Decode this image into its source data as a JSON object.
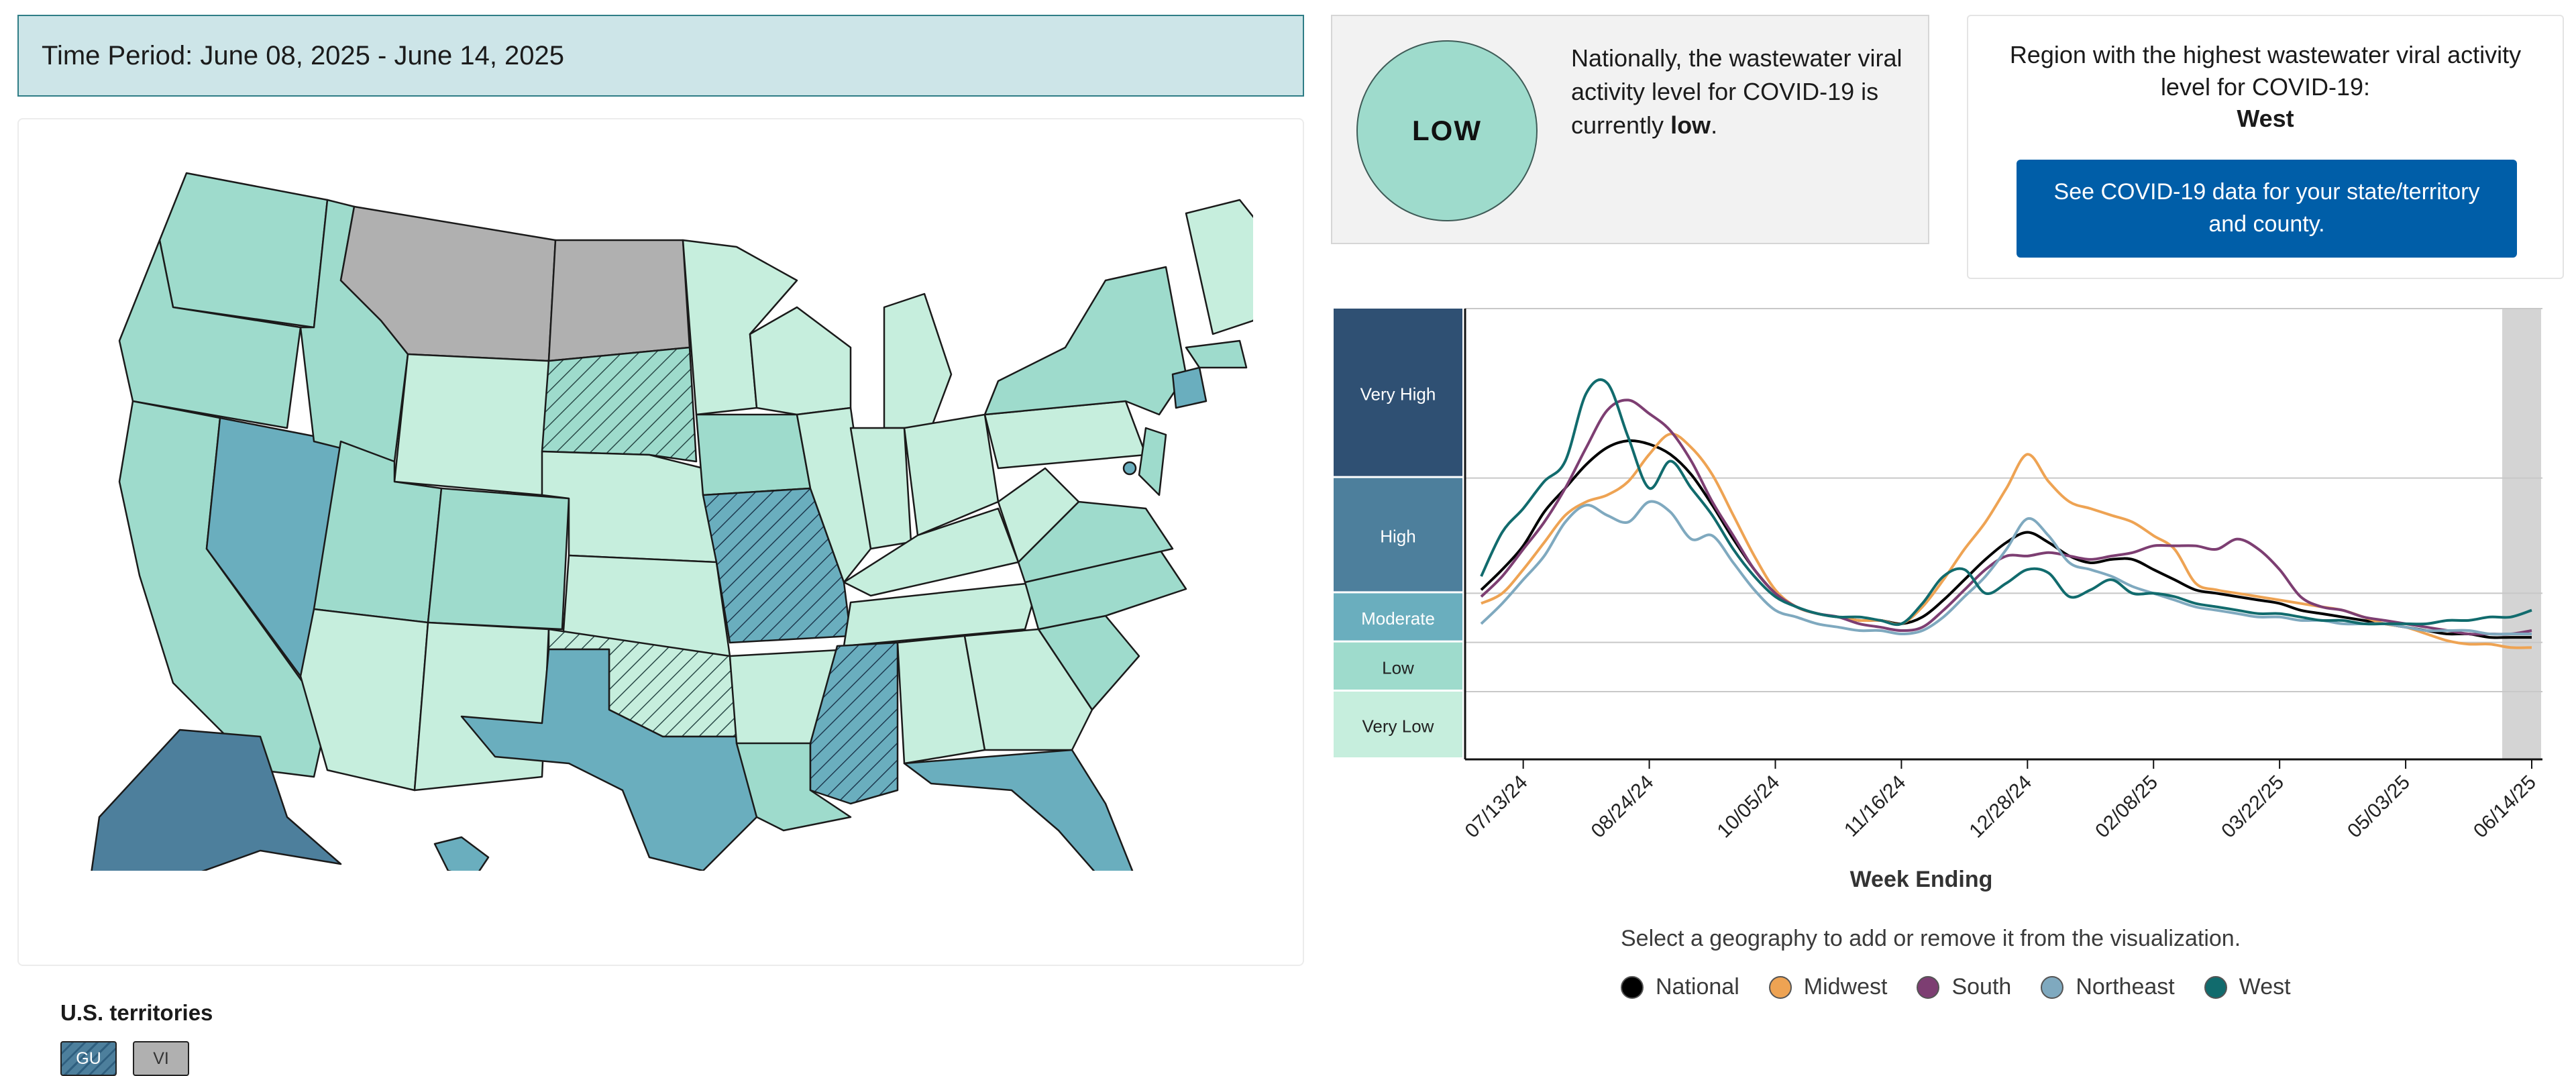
{
  "time_period": {
    "text": "Time Period: June 08, 2025 - June 14, 2025"
  },
  "national": {
    "level": "LOW",
    "text_before": "Nationally, the wastewater viral activity level for COVID-19 is currently",
    "level_word": "low",
    "text_after": "."
  },
  "region": {
    "title": "Region with the highest wastewater viral activity level for COVID-19:",
    "name": "West",
    "button_label": "See COVID-19 data for your state/territory and county."
  },
  "territories": {
    "title": "U.S. territories",
    "items": [
      {
        "label": "GU"
      },
      {
        "label": "VI"
      }
    ]
  },
  "colors": {
    "very_low": "#c6eedd",
    "low": "#9edbcc",
    "moderate": "#6aaebe",
    "high": "#4d7f9c",
    "very_high": "#2f5073",
    "no_data": "#b0b0b0",
    "national": "#000000",
    "midwest": "#eea353",
    "south": "#7d3e72",
    "northeast": "#7fa9bf",
    "west": "#116b6d"
  },
  "chart_data": {
    "type": "line",
    "title": "",
    "xlabel": "Week Ending",
    "ylabel": "",
    "x_tick_labels": [
      "07/13/24",
      "08/24/24",
      "10/05/24",
      "11/16/24",
      "12/28/24",
      "02/08/25",
      "03/22/25",
      "05/03/25",
      "06/14/25"
    ],
    "y_categories": [
      "Very High",
      "High",
      "Moderate",
      "Low",
      "Very Low"
    ],
    "x": [
      "06/29/24",
      "07/06/24",
      "07/13/24",
      "07/20/24",
      "07/27/24",
      "08/03/24",
      "08/10/24",
      "08/17/24",
      "08/24/24",
      "08/31/24",
      "09/07/24",
      "09/14/24",
      "09/21/24",
      "09/28/24",
      "10/05/24",
      "10/12/24",
      "10/19/24",
      "10/26/24",
      "11/02/24",
      "11/09/24",
      "11/16/24",
      "11/23/24",
      "11/30/24",
      "12/07/24",
      "12/14/24",
      "12/21/24",
      "12/28/24",
      "01/04/25",
      "01/11/25",
      "01/18/25",
      "01/25/25",
      "02/01/25",
      "02/08/25",
      "02/15/25",
      "02/22/25",
      "03/01/25",
      "03/08/25",
      "03/15/25",
      "03/22/25",
      "03/29/25",
      "04/05/25",
      "04/12/25",
      "04/19/25",
      "04/26/25",
      "05/03/25",
      "05/10/25",
      "05/17/25",
      "05/24/25",
      "05/31/25",
      "06/07/25",
      "06/14/25"
    ],
    "series": [
      {
        "name": "National",
        "values": [
          5.0,
          5.6,
          6.3,
          7.3,
          8.0,
          8.7,
          9.2,
          9.4,
          9.3,
          9.0,
          8.4,
          7.5,
          6.5,
          5.6,
          4.9,
          4.5,
          4.3,
          4.2,
          4.1,
          4.1,
          4.0,
          4.2,
          4.7,
          5.3,
          5.9,
          6.4,
          6.7,
          6.4,
          6.0,
          5.8,
          5.9,
          5.9,
          5.6,
          5.3,
          5.0,
          4.9,
          4.8,
          4.7,
          4.6,
          4.4,
          4.3,
          4.2,
          4.1,
          4.0,
          3.9,
          3.8,
          3.7,
          3.7,
          3.6,
          3.6,
          3.6
        ]
      },
      {
        "name": "Midwest",
        "values": [
          4.6,
          4.9,
          5.6,
          6.4,
          7.2,
          7.6,
          7.8,
          8.2,
          9.0,
          9.6,
          9.2,
          8.4,
          7.2,
          6.0,
          5.0,
          4.5,
          4.3,
          4.2,
          4.1,
          4.1,
          4.0,
          4.5,
          5.3,
          6.2,
          7.0,
          8.0,
          9.0,
          8.2,
          7.6,
          7.4,
          7.2,
          7.0,
          6.6,
          6.2,
          5.2,
          5.0,
          4.9,
          4.8,
          4.7,
          4.6,
          4.5,
          4.4,
          4.2,
          4.0,
          3.9,
          3.7,
          3.5,
          3.4,
          3.4,
          3.3,
          3.3
        ]
      },
      {
        "name": "South",
        "values": [
          4.8,
          5.4,
          6.2,
          7.0,
          8.0,
          9.2,
          10.3,
          10.6,
          10.2,
          9.7,
          8.8,
          7.6,
          6.6,
          5.6,
          4.9,
          4.5,
          4.3,
          4.2,
          4.0,
          3.9,
          3.8,
          3.9,
          4.4,
          5.0,
          5.6,
          6.0,
          6.0,
          6.1,
          6.0,
          5.9,
          6.0,
          6.1,
          6.3,
          6.3,
          6.3,
          6.2,
          6.5,
          6.2,
          5.6,
          4.8,
          4.5,
          4.4,
          4.2,
          4.1,
          4.0,
          3.9,
          3.8,
          3.7,
          3.7,
          3.7,
          3.8
        ]
      },
      {
        "name": "Northeast",
        "values": [
          4.0,
          4.6,
          5.3,
          6.0,
          7.0,
          7.5,
          7.2,
          7.0,
          7.6,
          7.3,
          6.5,
          6.6,
          5.8,
          5.0,
          4.4,
          4.2,
          4.0,
          3.9,
          3.8,
          3.8,
          3.7,
          3.8,
          4.2,
          4.8,
          5.4,
          6.2,
          7.1,
          6.6,
          5.8,
          5.6,
          5.4,
          5.1,
          4.9,
          4.7,
          4.5,
          4.4,
          4.3,
          4.2,
          4.2,
          4.1,
          4.1,
          4.0,
          4.0,
          4.0,
          3.9,
          3.8,
          3.8,
          3.8,
          3.7,
          3.7,
          3.7
        ]
      },
      {
        "name": "West",
        "values": [
          5.4,
          6.7,
          7.4,
          8.2,
          8.8,
          10.8,
          11.1,
          9.5,
          8.0,
          8.8,
          8.0,
          7.2,
          6.2,
          5.4,
          4.8,
          4.5,
          4.3,
          4.2,
          4.2,
          4.1,
          4.0,
          4.6,
          5.4,
          5.6,
          4.9,
          5.2,
          5.6,
          5.5,
          4.8,
          5.0,
          5.3,
          4.9,
          4.9,
          4.8,
          4.6,
          4.5,
          4.4,
          4.3,
          4.3,
          4.2,
          4.1,
          4.1,
          4.0,
          4.0,
          4.0,
          4.0,
          4.1,
          4.1,
          4.2,
          4.2,
          4.4
        ]
      }
    ],
    "instruction": "Select a geography to add or remove it from the visualization."
  },
  "map": {
    "states": [
      {
        "id": "WA",
        "level": "low"
      },
      {
        "id": "OR",
        "level": "low"
      },
      {
        "id": "CA",
        "level": "low"
      },
      {
        "id": "ID",
        "level": "low"
      },
      {
        "id": "NV",
        "level": "moderate"
      },
      {
        "id": "MT",
        "level": "no_data"
      },
      {
        "id": "WY",
        "level": "very_low"
      },
      {
        "id": "UT",
        "level": "low"
      },
      {
        "id": "AZ",
        "level": "very_low"
      },
      {
        "id": "CO",
        "level": "low"
      },
      {
        "id": "NM",
        "level": "very_low"
      },
      {
        "id": "ND",
        "level": "no_data"
      },
      {
        "id": "SD",
        "level": "low"
      },
      {
        "id": "NE",
        "level": "very_low"
      },
      {
        "id": "KS",
        "level": "very_low"
      },
      {
        "id": "OK",
        "level": "very_low"
      },
      {
        "id": "TX",
        "level": "moderate"
      },
      {
        "id": "MN",
        "level": "very_low"
      },
      {
        "id": "IA",
        "level": "low"
      },
      {
        "id": "MO",
        "level": "moderate"
      },
      {
        "id": "AR",
        "level": "very_low"
      },
      {
        "id": "LA",
        "level": "low"
      },
      {
        "id": "WI",
        "level": "very_low"
      },
      {
        "id": "IL",
        "level": "very_low"
      },
      {
        "id": "MI",
        "level": "very_low"
      },
      {
        "id": "IN",
        "level": "very_low"
      },
      {
        "id": "OH",
        "level": "very_low"
      },
      {
        "id": "KY",
        "level": "very_low"
      },
      {
        "id": "TN",
        "level": "very_low"
      },
      {
        "id": "MS",
        "level": "moderate"
      },
      {
        "id": "AL",
        "level": "very_low"
      },
      {
        "id": "GA",
        "level": "very_low"
      },
      {
        "id": "FL",
        "level": "moderate"
      },
      {
        "id": "SC",
        "level": "low"
      },
      {
        "id": "NC",
        "level": "low"
      },
      {
        "id": "VA",
        "level": "low"
      },
      {
        "id": "WV",
        "level": "very_low"
      },
      {
        "id": "PA",
        "level": "very_low"
      },
      {
        "id": "NY",
        "level": "low"
      },
      {
        "id": "NJ",
        "level": "low"
      },
      {
        "id": "CT",
        "level": "moderate"
      },
      {
        "id": "MA",
        "level": "low"
      },
      {
        "id": "ME",
        "level": "very_low"
      },
      {
        "id": "AK",
        "level": "high"
      },
      {
        "id": "HI",
        "level": "moderate"
      }
    ]
  }
}
